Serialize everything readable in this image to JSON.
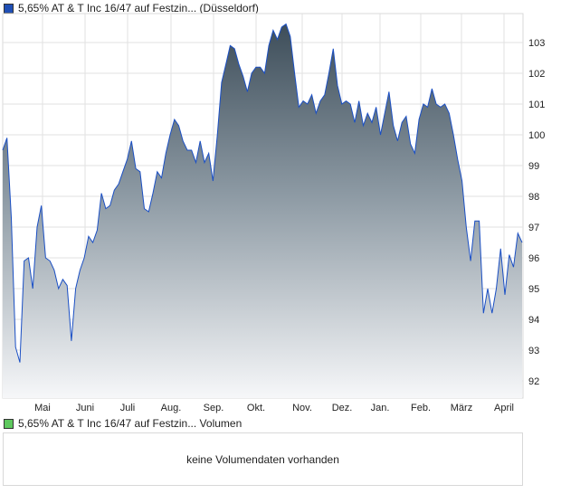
{
  "price_legend": {
    "label": "5,65% AT & T Inc 16/47 auf Festzin... (Düsseldorf)",
    "color": "#1f4fb5"
  },
  "volume_legend": {
    "label": "5,65% AT & T Inc 16/47 auf Festzin... Volumen",
    "color": "#5ec85e"
  },
  "volume_panel": {
    "message": "keine Volumendaten vorhanden"
  },
  "chart_data": {
    "type": "area",
    "title": "5,65% AT & T Inc 16/47 auf Festzin... (Düsseldorf)",
    "xlabel": "",
    "ylabel": "",
    "ylim": [
      91.4,
      103.9
    ],
    "yticks": [
      92,
      93,
      94,
      95,
      96,
      97,
      98,
      99,
      100,
      101,
      102,
      103
    ],
    "months": [
      "Mai",
      "Juni",
      "Juli",
      "Aug.",
      "Sep.",
      "Okt.",
      "Nov.",
      "Dez.",
      "Jan.",
      "Feb.",
      "März",
      "April"
    ],
    "grid": true,
    "line_color": "#1a4fc4",
    "values": [
      99.5,
      99.9,
      97.3,
      93.1,
      92.6,
      95.9,
      96.0,
      95.0,
      97.0,
      97.7,
      96.0,
      95.9,
      95.6,
      95.0,
      95.3,
      95.1,
      93.3,
      95.0,
      95.6,
      96.0,
      96.7,
      96.5,
      96.9,
      98.1,
      97.6,
      97.7,
      98.2,
      98.4,
      98.8,
      99.2,
      99.8,
      98.9,
      98.8,
      97.6,
      97.5,
      98.1,
      98.8,
      98.6,
      99.4,
      100.0,
      100.5,
      100.3,
      99.8,
      99.5,
      99.5,
      99.1,
      99.8,
      99.1,
      99.4,
      98.5,
      100.0,
      101.7,
      102.3,
      102.9,
      102.8,
      102.3,
      101.9,
      101.4,
      102.0,
      102.2,
      102.2,
      102.0,
      102.9,
      103.4,
      103.1,
      103.5,
      103.6,
      103.2,
      102.0,
      100.9,
      101.1,
      101.0,
      101.3,
      100.7,
      101.1,
      101.3,
      102.0,
      102.8,
      101.6,
      101.0,
      101.1,
      101.0,
      100.4,
      101.1,
      100.3,
      100.7,
      100.4,
      100.9,
      100.0,
      100.7,
      101.4,
      100.3,
      99.8,
      100.4,
      100.6,
      99.7,
      99.4,
      100.5,
      101.0,
      100.9,
      101.5,
      101.0,
      100.9,
      101.0,
      100.7,
      100.0,
      99.2,
      98.5,
      97.0,
      95.9,
      97.2,
      97.2,
      94.2,
      95.0,
      94.2,
      95.0,
      96.3,
      94.8,
      96.1,
      95.7,
      96.8,
      96.5
    ]
  }
}
